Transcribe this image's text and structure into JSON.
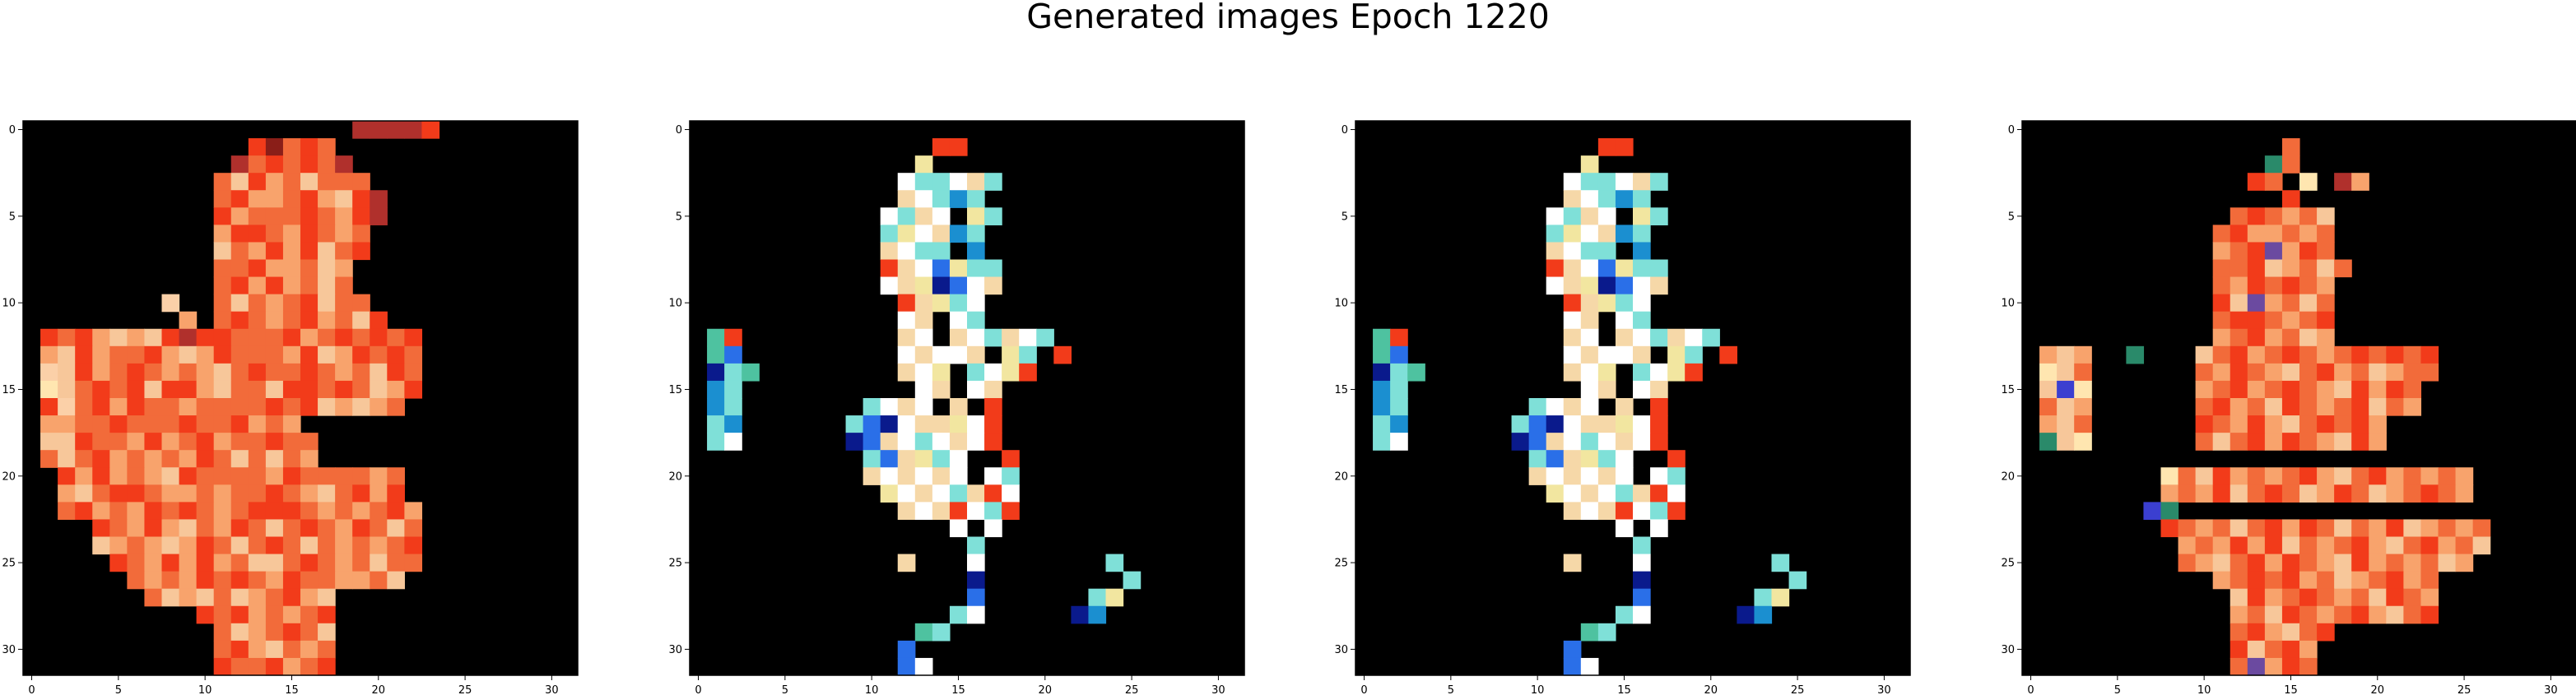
{
  "figure": {
    "title": "Generated images Epoch 1220",
    "grid_size": 32
  },
  "chart_data": [
    {
      "type": "heatmap",
      "title": "",
      "xlim": [
        -0.5,
        31.5
      ],
      "ylim": [
        31.5,
        -0.5
      ],
      "xticks": [
        0,
        5,
        10,
        15,
        20,
        25,
        30
      ],
      "yticks": [
        0,
        5,
        10,
        15,
        20,
        25,
        30
      ],
      "xtick_labels": [
        "0",
        "5",
        "10",
        "15",
        "20",
        "25",
        "30"
      ],
      "ytick_labels": [
        "0",
        "5",
        "10",
        "15",
        "20",
        "25",
        "30"
      ],
      "palette": [
        "#000000",
        "#f23b1a",
        "#f8a36c",
        "#f26b3a",
        "#ffe6b0",
        "#d9411f",
        "#f7c79a",
        "#b0302c",
        "#fbd0a8",
        "#8a1e18"
      ],
      "rows": [
        "00000000000000000007777100000000",
        "00000000000001931300000000000000",
        "00000000000073131370000000000000",
        "00000000000361236333000000000000",
        "00000000000312231261700000000000",
        "00000000000123331321700000000000",
        "00000000000211321323000000000000",
        "00000000000632121631000000000000",
        "00000000000331223620000000000000",
        "00000000000312123630000000000000",
        "00000000800363231633000000000000",
        "00000000020313231236100000000000",
        "01312626171133312313131000000000",
        "02612331262133321621313000000000",
        "08612313232631331323613000000000",
        "04631316112633611313621000000000",
        "01831213323333131626230000000000",
        "02233133313312320000000000000000",
        "06613321231233133000000000000000",
        "03631232321363632000000000000000",
        "00121232613333213333230000000000",
        "00263113223233132631210000000000",
        "00312321313231113232312000000000",
        "00001321263213631321363000000000",
        "00006232621363136323231000000000",
        "00000132121236631323633000000000",
        "00000032321313213322360000000000",
        "00000003626362312600000000000000",
        "00000000001312323100000000000000",
        "00000000000362313600000000000000",
        "00000000000312632300000000000000",
        "00000000000133123100000000000000"
      ]
    },
    {
      "type": "heatmap",
      "title": "",
      "xlim": [
        -0.5,
        31.5
      ],
      "ylim": [
        31.5,
        -0.5
      ],
      "xticks": [
        0,
        5,
        10,
        15,
        20,
        25,
        30
      ],
      "yticks": [
        0,
        5,
        10,
        15,
        20,
        25,
        30
      ],
      "xtick_labels": [
        "0",
        "5",
        "10",
        "15",
        "20",
        "25",
        "30"
      ],
      "ytick_labels": [
        "0",
        "5",
        "10",
        "15",
        "20",
        "25",
        "30"
      ],
      "palette": [
        "#000000",
        "#ffffff",
        "#7fe0d8",
        "#f6d8a8",
        "#2a6fe8",
        "#1b8fd0",
        "#f2e6a0",
        "#f23b1a",
        "#0a1a8c",
        "#4ec2a0"
      ],
      "rows": [
        "00000000000000000000000000000000",
        "00000000000000770000000000000000",
        "00000000000006000000000000000000",
        "00000000000012213200000000000000",
        "00000000000031252000000000000000",
        "00000000000123106200000000000000",
        "00000000000261352000000000000000",
        "00000000000312205000000000000000",
        "00000000000731462200000000000000",
        "00000000000136841300000000000000",
        "00000000000073621000000000000000",
        "00000000000013012000000000000000",
        "09700000000031031231200000000000",
        "09400000000013113062070000000000",
        "08290000000031602167000000000000",
        "05200000000001301300000000000000",
        "05200000002131030700000000000000",
        "02500000024813361700000000000000",
        "02100000084312131700000000000000",
        "00000000002436210070000000000000",
        "00000000003131310120000000000000",
        "00000000000613123710000000000000",
        "00000000000031371270000000000000",
        "00000000000000010100000000000000",
        "00000000000000002000000000000000",
        "00000000000030001000000020000000",
        "00000000000000008000000002000000",
        "00000000000000004000000260000000",
        "00000000000000021000008500000000",
        "00000000000009200000000000000000",
        "00000000000040000000000000000000",
        "00000000000041000000000000000000"
      ]
    },
    {
      "type": "heatmap",
      "title": "",
      "xlim": [
        -0.5,
        31.5
      ],
      "ylim": [
        31.5,
        -0.5
      ],
      "xticks": [
        0,
        5,
        10,
        15,
        20,
        25,
        30
      ],
      "yticks": [
        0,
        5,
        10,
        15,
        20,
        25,
        30
      ],
      "xtick_labels": [
        "0",
        "5",
        "10",
        "15",
        "20",
        "25",
        "30"
      ],
      "ytick_labels": [
        "0",
        "5",
        "10",
        "15",
        "20",
        "25",
        "30"
      ],
      "palette": [
        "#000000",
        "#ffffff",
        "#7fe0d8",
        "#f6d8a8",
        "#2a6fe8",
        "#1b8fd0",
        "#f2e6a0",
        "#f23b1a",
        "#0a1a8c",
        "#4ec2a0"
      ],
      "rows": [
        "00000000000000000000000000000000",
        "00000000000000770000000000000000",
        "00000000000006000000000000000000",
        "00000000000012213200000000000000",
        "00000000000031252000000000000000",
        "00000000000123106200000000000000",
        "00000000000261352000000000000000",
        "00000000000312205000000000000000",
        "00000000000731462200000000000000",
        "00000000000136841300000000000000",
        "00000000000073621000000000000000",
        "00000000000013012000000000000000",
        "09700000000031031231200000000000",
        "09400000000013113062070000000000",
        "08290000000031602167000000000000",
        "05200000000001301300000000000000",
        "05200000002131030700000000000000",
        "02500000024813361700000000000000",
        "02100000084312131700000000000000",
        "00000000002436210070000000000000",
        "00000000003131310120000000000000",
        "00000000000613123710000000000000",
        "00000000000031371270000000000000",
        "00000000000000010100000000000000",
        "00000000000000002000000000000000",
        "00000000000030001000000020000000",
        "00000000000000008000000002000000",
        "00000000000000004000000260000000",
        "00000000000000021000008500000000",
        "00000000000009200000000000000000",
        "00000000000040000000000000000000",
        "00000000000041000000000000000000"
      ]
    },
    {
      "type": "heatmap",
      "title": "",
      "xlim": [
        -0.5,
        31.5
      ],
      "ylim": [
        31.5,
        -0.5
      ],
      "xticks": [
        0,
        5,
        10,
        15,
        20,
        25,
        30
      ],
      "yticks": [
        0,
        5,
        10,
        15,
        20,
        25,
        30
      ],
      "xtick_labels": [
        "0",
        "5",
        "10",
        "15",
        "20",
        "25",
        "30"
      ],
      "ytick_labels": [
        "0",
        "5",
        "10",
        "15",
        "20",
        "25",
        "30"
      ],
      "palette": [
        "#000000",
        "#f23b1a",
        "#f8a36c",
        "#f26b3a",
        "#ffe6b0",
        "#6b4aa0",
        "#f7c79a",
        "#b0302c",
        "#3b3fd0",
        "#2a8a6a"
      ],
      "rows": [
        "00000000000000000000000000000000",
        "00000000000000030000000000000000",
        "00000000000000930000000000000000",
        "00000000000001304072000000000000",
        "00000000000000010000000000000000",
        "00000000000031323600000000000000",
        "00000000000312232300000000000000",
        "00000000000231521300000000000000",
        "00000000000331623630000000000000",
        "00000000000321313200000000000000",
        "00000000000165236300000000000000",
        "00000000000311323100000000000000",
        "00000000000231236200000000000000",
        "02620090006312313231313100000000",
        "04630000003213263123623300000000",
        "06840000002312313261213000000000",
        "03620000003123613231632000000000",
        "02630000001321263131200000000000",
        "09640000003631213261200000000000",
        "00000000000000000000000000000000",
        "00000000436123231263123232000000",
        "00000000232163136213623132000000",
        "00000008900000000000000000000000",
        "00000000132363121363216232300000",
        "00000000023212163231263123600000",
        "00000000032631213261232362000000",
        "00000000000231312362312300000000",
        "00000000000061231323613200000000",
        "00000000000023613231263100000000",
        "00000000000031263100000000000000",
        "00000000000016312000000000000000",
        "00000000000035213000000000000000"
      ]
    }
  ]
}
